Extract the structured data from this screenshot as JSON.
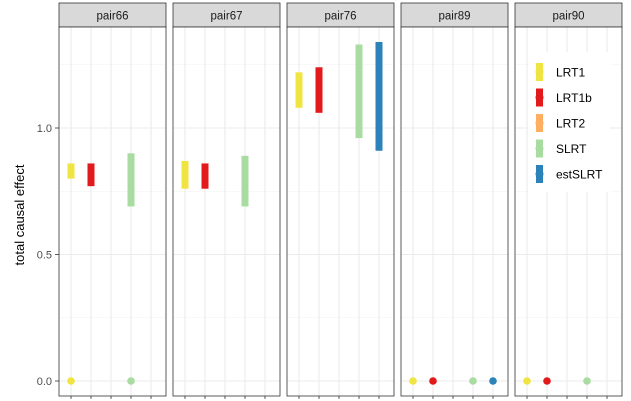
{
  "chart_data": {
    "type": "errorbar",
    "ylabel": "total causal effect",
    "xlabel": "",
    "ylim": [
      -0.03,
      1.38
    ],
    "y_ticks": [
      "0.0",
      "0.5",
      "1.0"
    ],
    "facets": [
      "pair66",
      "pair67",
      "pair76",
      "pair89",
      "pair90"
    ],
    "series": [
      {
        "name": "LRT1",
        "color": "#F0E442",
        "values": [
          [
            0.8,
            0.86
          ],
          [
            0.76,
            0.87
          ],
          [
            1.08,
            1.22
          ],
          null,
          null
        ]
      },
      {
        "name": "LRT1b",
        "color": "#E31A1C",
        "values": [
          [
            0.77,
            0.86
          ],
          [
            0.76,
            0.86
          ],
          [
            1.06,
            1.24
          ],
          null,
          null
        ]
      },
      {
        "name": "LRT2",
        "color": "#FDAE61",
        "values": [
          null,
          null,
          null,
          null,
          null
        ]
      },
      {
        "name": "SLRT",
        "color": "#A8DCA0",
        "values": [
          [
            0.69,
            0.9
          ],
          [
            0.69,
            0.89
          ],
          [
            0.96,
            1.33
          ],
          null,
          null
        ]
      },
      {
        "name": "estSLRT",
        "color": "#2B83BA",
        "values": [
          null,
          null,
          [
            0.91,
            1.34
          ],
          null,
          null
        ]
      }
    ],
    "points_at_zero": [
      [
        "LRT1",
        "SLRT"
      ],
      [],
      [],
      [
        "LRT1",
        "LRT1b",
        "SLRT",
        "estSLRT"
      ],
      [
        "LRT1",
        "LRT1b",
        "SLRT"
      ]
    ],
    "legend_position": "right-inside"
  }
}
